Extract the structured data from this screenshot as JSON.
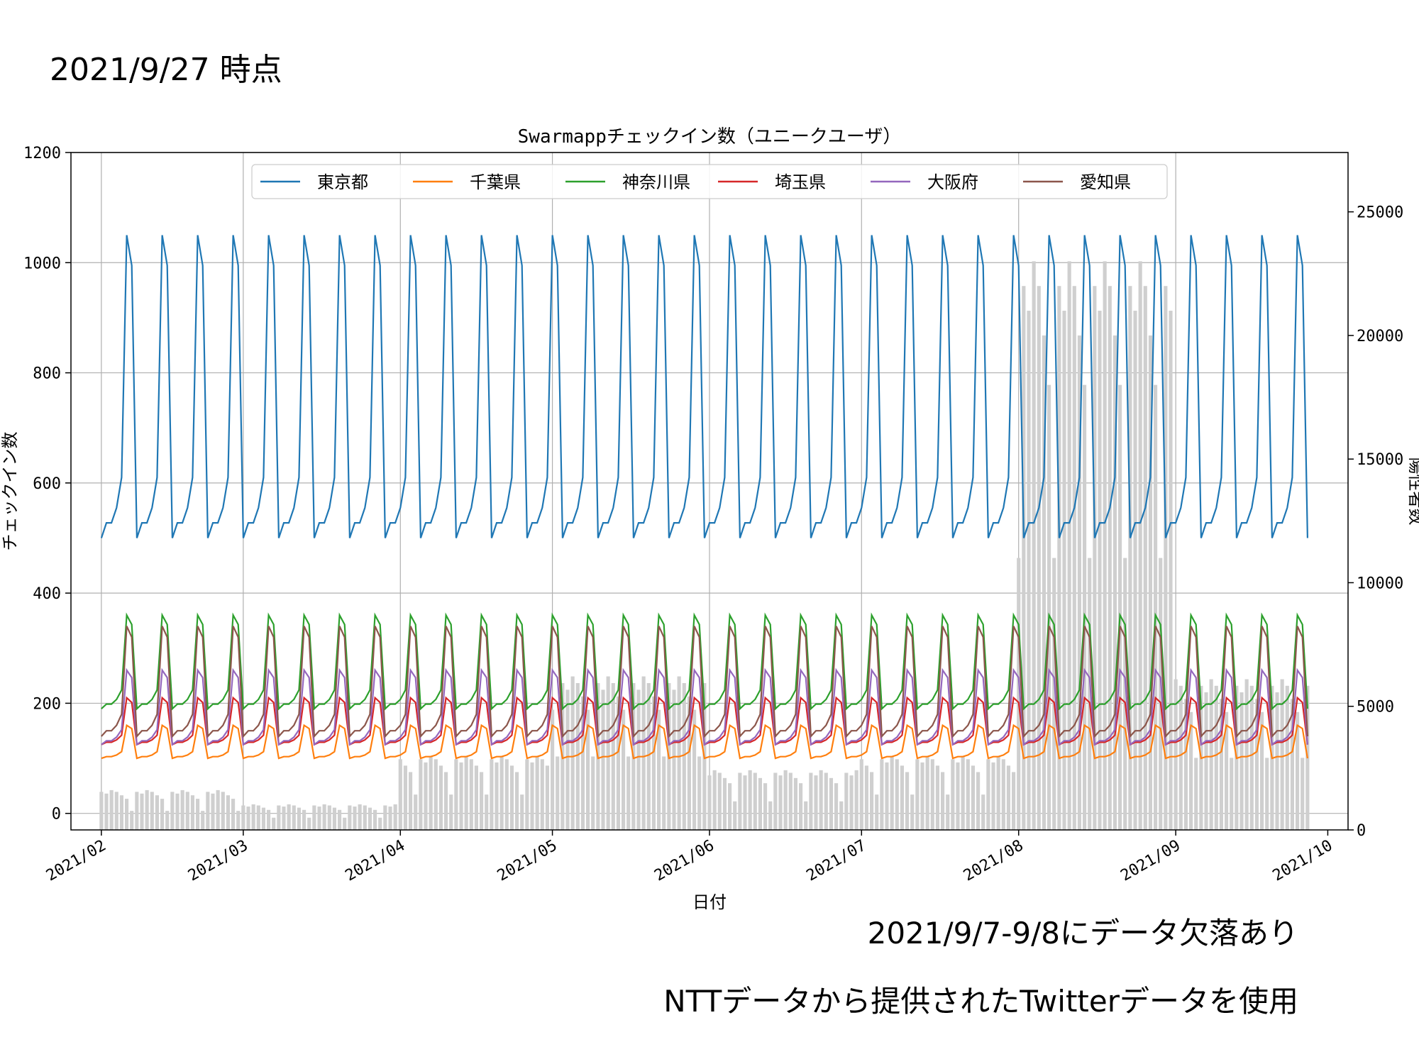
{
  "slide": {
    "title": "2021/9/27 時点",
    "note_missing": "2021/9/7-9/8にデータ欠落あり",
    "note_source": "NTTデータから提供されたTwitterデータを使用"
  },
  "chart_data": {
    "type": "line",
    "title": "Swarmappチェックイン数（ユニークユーザ）",
    "xlabel": "日付",
    "ylabel": "チェックイン数",
    "ylabel_right": "陽性者数",
    "x_ticks": [
      "2021/02",
      "2021/03",
      "2021/04",
      "2021/05",
      "2021/06",
      "2021/07",
      "2021/08",
      "2021/09",
      "2021/10"
    ],
    "y_ticks": [
      0,
      200,
      400,
      600,
      800,
      1000,
      1200
    ],
    "y2_ticks": [
      0,
      5000,
      10000,
      15000,
      20000,
      25000
    ],
    "ylim": [
      -30,
      1200
    ],
    "y2lim": [
      0,
      27400
    ],
    "x_range": [
      "2021-01-26",
      "2021-10-05"
    ],
    "grid": true,
    "legend_position": "upper-center",
    "colors": {
      "東京都": "#1f77b4",
      "千葉県": "#ff7f0e",
      "神奈川県": "#2ca02c",
      "埼玉県": "#d62728",
      "大阪府": "#9467bd",
      "愛知県": "#8c564b",
      "bars": "#cfcfcf"
    },
    "legend": [
      "東京都",
      "千葉県",
      "神奈川県",
      "埼玉県",
      "大阪府",
      "愛知県"
    ],
    "series": [
      {
        "name": "東京都",
        "peak": 1050,
        "base": 500
      },
      {
        "name": "千葉県",
        "peak": 160,
        "base": 100
      },
      {
        "name": "神奈川県",
        "peak": 360,
        "base": 190
      },
      {
        "name": "埼玉県",
        "peak": 210,
        "base": 125
      },
      {
        "name": "大阪府",
        "peak": 260,
        "base": 125
      },
      {
        "name": "愛知県",
        "peak": 340,
        "base": 140
      }
    ],
    "bars": {
      "name": "陽性者数",
      "monthly_values": [
        {
          "month": "2021/02",
          "value": 1400
        },
        {
          "month": "2021/03",
          "value": 900
        },
        {
          "month": "2021/04",
          "value": 2600
        },
        {
          "month": "2021/05",
          "value": 5400
        },
        {
          "month": "2021/06",
          "value": 2100
        },
        {
          "month": "2021/07",
          "value": 2600
        },
        {
          "month": "2021/08",
          "value": 20000
        },
        {
          "month": "2021/09",
          "value": 5300
        }
      ]
    }
  }
}
